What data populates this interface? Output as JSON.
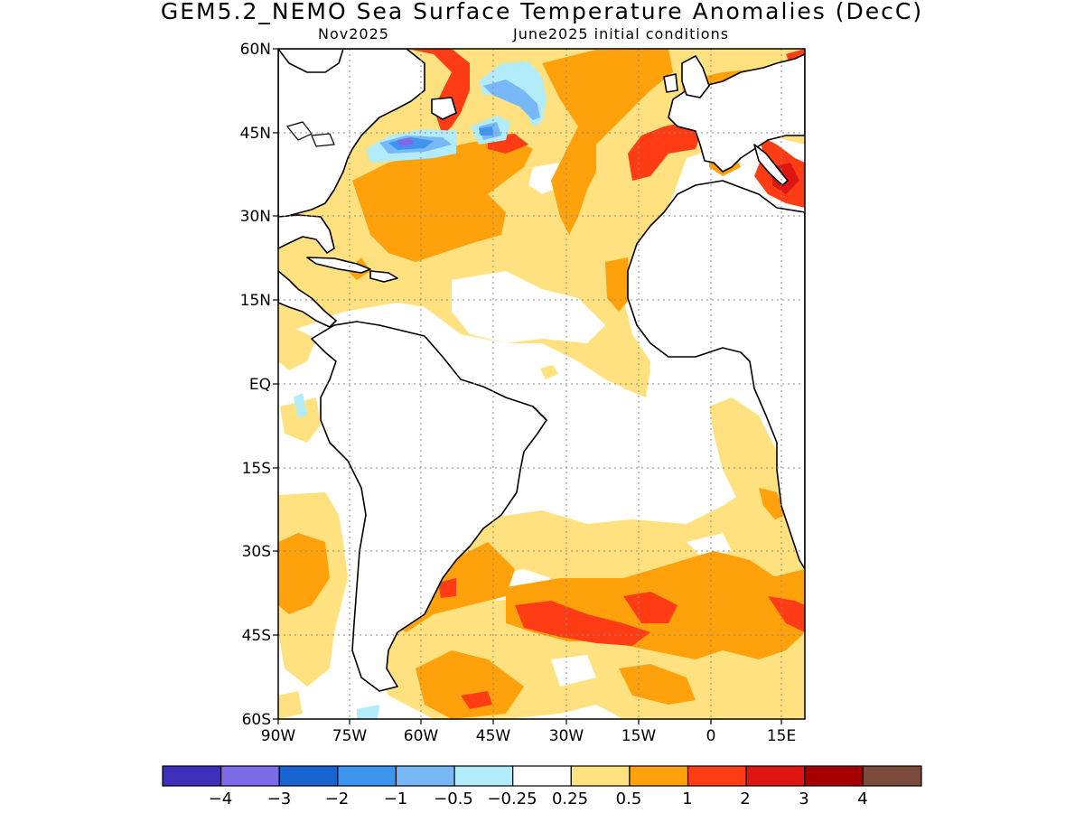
{
  "title": "GEM5.2_NEMO Sea Surface Temperature Anomalies (DecC)",
  "subtitle_left": "Nov2025",
  "subtitle_right": "June2025 initial conditions",
  "map": {
    "lat_labels": [
      "60N",
      "45N",
      "30N",
      "15N",
      "EQ",
      "15S",
      "30S",
      "45S",
      "60S"
    ],
    "lon_labels": [
      "90W",
      "75W",
      "60W",
      "45W",
      "30W",
      "15W",
      "0",
      "15E"
    ]
  },
  "colorbar": {
    "colors": [
      "#3c2fb9",
      "#7d6ae8",
      "#1763cf",
      "#3d95f0",
      "#78b8f8",
      "#b2ecfb",
      "#ffffff",
      "#ffe180",
      "#ffa10a",
      "#ff3c14",
      "#de1510",
      "#a40000",
      "#7a4b3d"
    ],
    "labels": [
      "−4",
      "−3",
      "−2",
      "−1",
      "−0.5",
      "−0.25",
      "0.25",
      "0.5",
      "1",
      "2",
      "3",
      "4"
    ]
  }
}
